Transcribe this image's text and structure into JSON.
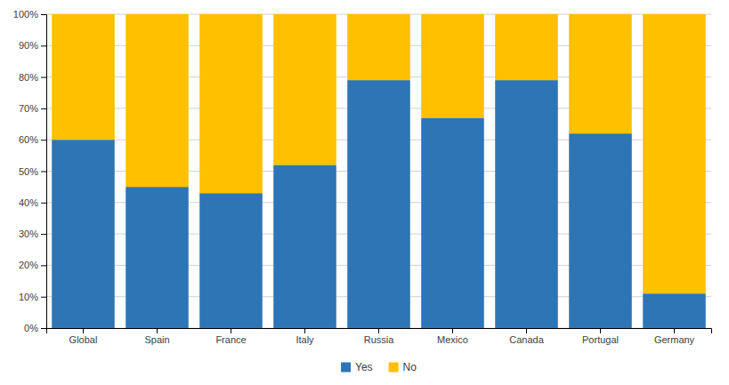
{
  "chart_data": {
    "type": "bar",
    "stacked": true,
    "categories": [
      "Global",
      "Spain",
      "France",
      "Italy",
      "Russia",
      "Mexico",
      "Canada",
      "Portugal",
      "Germany"
    ],
    "series": [
      {
        "name": "Yes",
        "color": "#2E75B6",
        "values": [
          60,
          45,
          43,
          52,
          79,
          67,
          79,
          62,
          11
        ]
      },
      {
        "name": "No",
        "color": "#FFC000",
        "values": [
          40,
          55,
          57,
          48,
          21,
          33,
          21,
          38,
          89
        ]
      }
    ],
    "ylim": [
      0,
      100
    ],
    "yticks": [
      {
        "value": 0,
        "label": "0%"
      },
      {
        "value": 10,
        "label": "10%"
      },
      {
        "value": 20,
        "label": "20%"
      },
      {
        "value": 30,
        "label": "30%"
      },
      {
        "value": 40,
        "label": "40%"
      },
      {
        "value": 50,
        "label": "50%"
      },
      {
        "value": 60,
        "label": "60%"
      },
      {
        "value": 70,
        "label": "70%"
      },
      {
        "value": 80,
        "label": "80%"
      },
      {
        "value": 90,
        "label": "90%"
      },
      {
        "value": 100,
        "label": "100%"
      }
    ],
    "grid": true,
    "legend": "bottom"
  }
}
